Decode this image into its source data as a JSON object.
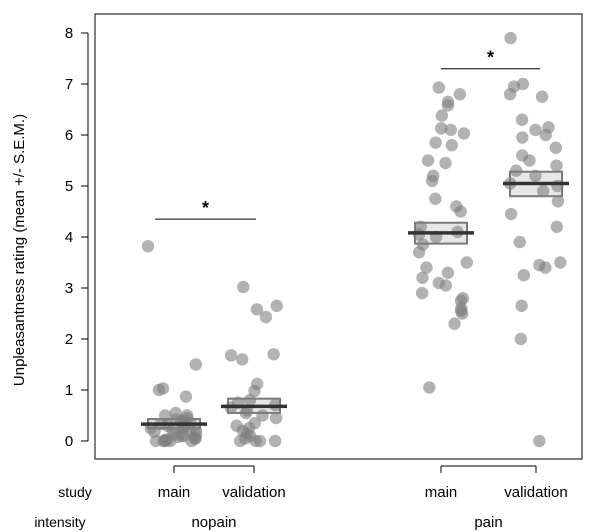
{
  "chart_data": {
    "type": "scatter",
    "subtype": "jittered dot plot with mean ± SEM boxes",
    "ylabel": "Unpleasantness rating (mean +/- S.E.M.)",
    "ylim": [
      -0.3,
      8.3
    ],
    "yticks": [
      0,
      1,
      2,
      3,
      4,
      5,
      6,
      7,
      8
    ],
    "grid": false,
    "row_labels": {
      "study": "study",
      "intensity": "intensity"
    },
    "intensity_labels": [
      "nopain",
      "pain"
    ],
    "groups": [
      {
        "study": "main",
        "intensity": "nopain",
        "mean": 0.33,
        "sem_low": 0.25,
        "sem_high": 0.43,
        "points": [
          3.82,
          1.5,
          1.03,
          1.0,
          0.87,
          0.55,
          0.5,
          0.5,
          0.45,
          0.42,
          0.4,
          0.38,
          0.35,
          0.33,
          0.3,
          0.3,
          0.28,
          0.25,
          0.25,
          0.22,
          0.2,
          0.2,
          0.18,
          0.15,
          0.12,
          0.1,
          0.1,
          0.08,
          0.05,
          0.05,
          0.03,
          0.02,
          0.0,
          0.0,
          0.0,
          0.0,
          0.0
        ]
      },
      {
        "study": "validation",
        "intensity": "nopain",
        "mean": 0.68,
        "sem_low": 0.55,
        "sem_high": 0.83,
        "points": [
          3.02,
          2.65,
          2.58,
          2.43,
          1.7,
          1.68,
          1.6,
          1.12,
          0.98,
          0.8,
          0.75,
          0.7,
          0.65,
          0.6,
          0.55,
          0.5,
          0.45,
          0.35,
          0.3,
          0.25,
          0.2,
          0.15,
          0.1,
          0.05,
          0.0,
          0.0,
          0.0,
          0.0
        ]
      },
      {
        "study": "main",
        "intensity": "pain",
        "mean": 4.08,
        "sem_low": 3.87,
        "sem_high": 4.28,
        "points": [
          6.93,
          6.8,
          6.65,
          6.58,
          6.38,
          6.13,
          6.1,
          6.03,
          5.85,
          5.8,
          5.5,
          5.45,
          5.2,
          5.1,
          4.75,
          4.6,
          4.5,
          4.2,
          4.1,
          4.05,
          4.0,
          3.85,
          3.7,
          3.5,
          3.4,
          3.3,
          3.2,
          3.1,
          3.05,
          2.9,
          2.8,
          2.75,
          2.6,
          2.55,
          2.5,
          2.3,
          1.05
        ]
      },
      {
        "study": "validation",
        "intensity": "pain",
        "mean": 5.05,
        "sem_low": 4.8,
        "sem_high": 5.28,
        "points": [
          7.9,
          7.0,
          6.95,
          6.8,
          6.75,
          6.3,
          6.15,
          6.1,
          6.0,
          5.95,
          5.75,
          5.6,
          5.5,
          5.4,
          5.3,
          5.2,
          5.05,
          5.0,
          4.9,
          4.7,
          4.45,
          4.2,
          3.9,
          3.5,
          3.45,
          3.4,
          3.25,
          2.65,
          2.0,
          0.0
        ]
      }
    ],
    "comparisons": [
      {
        "between": [
          "nopain main",
          "nopain validation"
        ],
        "y": 4.35,
        "label": "*"
      },
      {
        "between": [
          "pain main",
          "pain validation"
        ],
        "y": 7.3,
        "label": "*"
      }
    ],
    "colors": {
      "dot": "#7f7f7f",
      "box_fill": "#e3e3e3",
      "box_stroke": "#7a7a7a",
      "mean_line": "#333333"
    }
  }
}
